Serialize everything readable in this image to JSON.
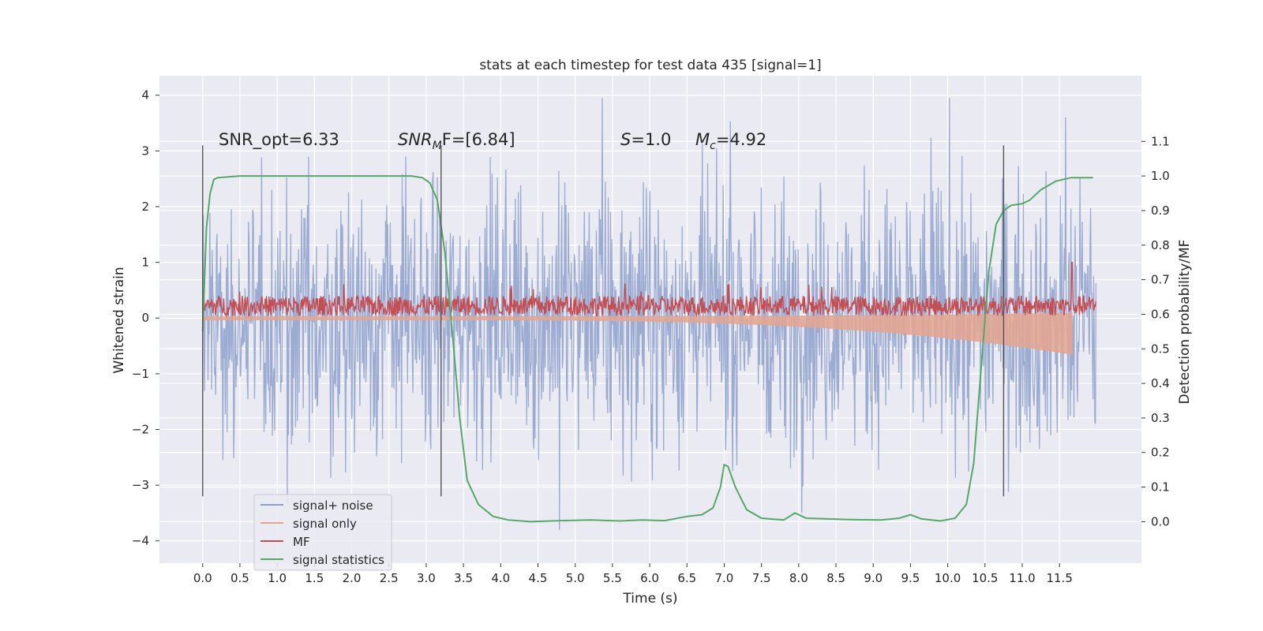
{
  "chart_data": {
    "type": "line",
    "title": "stats at each timestep for test data 435 [signal=1]",
    "xlabel": "Time (s)",
    "ylabel": "Whitened strain",
    "ylabel_right": "Detection probability/MF",
    "xlim": [
      -0.58,
      12.6
    ],
    "ylim": [
      -4.4,
      4.35
    ],
    "ylim_right": [
      -0.12,
      1.29
    ],
    "x_ticks": [
      0.0,
      0.5,
      1.0,
      1.5,
      2.0,
      2.5,
      3.0,
      3.5,
      4.0,
      4.5,
      5.0,
      5.5,
      6.0,
      6.5,
      7.0,
      7.5,
      8.0,
      8.5,
      9.0,
      9.5,
      10.0,
      10.5,
      11.0,
      11.5
    ],
    "x_tick_labels": [
      "0.0",
      "0.5",
      "1.0",
      "1.5",
      "2.0",
      "2.5",
      "3.0",
      "3.5",
      "4.0",
      "4.5",
      "5.0",
      "5.5",
      "6.0",
      "6.5",
      "7.0",
      "7.5",
      "8.0",
      "8.5",
      "9.0",
      "9.5",
      "10.0",
      "10.5",
      "11.0",
      "11.5"
    ],
    "y_ticks": [
      -4,
      -3,
      -2,
      -1,
      0,
      1,
      2,
      3,
      4
    ],
    "y_tick_labels": [
      "−4",
      "−3",
      "−2",
      "−1",
      "0",
      "1",
      "2",
      "3",
      "4"
    ],
    "y_ticks_right": [
      0.0,
      0.1,
      0.2,
      0.3,
      0.4,
      0.5,
      0.6,
      0.7,
      0.8,
      0.9,
      1.0,
      1.1
    ],
    "y_tick_labels_right": [
      "0.0",
      "0.1",
      "0.2",
      "0.3",
      "0.4",
      "0.5",
      "0.6",
      "0.7",
      "0.8",
      "0.9",
      "1.0",
      "1.1"
    ],
    "grid": true,
    "legend_position": "lower-left",
    "annotations": {
      "snr_opt": "SNR_opt=6.33",
      "snr_mf_base": "SNR",
      "snr_mf_sub": "M",
      "snr_mf_tail": "F=[6.84]",
      "s_label": "S",
      "s_value": "=1.0",
      "mc_base": "M",
      "mc_sub": "c",
      "mc_value": "=4.92"
    },
    "vertical_markers": [
      0.0,
      3.2,
      10.75
    ],
    "marker_range": [
      -3.2,
      3.1
    ],
    "series": [
      {
        "name": "signal+ noise",
        "color": "#8da0cb",
        "axis": "left",
        "style": "noise",
        "x_range": [
          0.0,
          11.99
        ],
        "peak_min": -3.8,
        "peak_max": 3.95
      },
      {
        "name": "signal only",
        "color": "#e4a58f",
        "axis": "left",
        "style": "chirp",
        "x_range": [
          0.0,
          11.67
        ],
        "min": -0.62
      },
      {
        "name": "MF",
        "color": "#c44e52",
        "axis": "left",
        "style": "mf",
        "x_range": [
          0.0,
          11.99
        ],
        "center": 0.22,
        "max": 1.0,
        "spike_x": 11.67
      },
      {
        "name": "signal statistics",
        "color": "#55a868",
        "axis": "right",
        "style": "curve",
        "points": [
          [
            0.0,
            0.55
          ],
          [
            0.05,
            0.85
          ],
          [
            0.1,
            0.95
          ],
          [
            0.15,
            0.99
          ],
          [
            0.2,
            0.995
          ],
          [
            0.5,
            1.0
          ],
          [
            1.0,
            1.0
          ],
          [
            1.5,
            1.0
          ],
          [
            2.0,
            1.0
          ],
          [
            2.5,
            1.0
          ],
          [
            2.8,
            1.0
          ],
          [
            2.95,
            0.995
          ],
          [
            3.05,
            0.98
          ],
          [
            3.15,
            0.93
          ],
          [
            3.25,
            0.78
          ],
          [
            3.35,
            0.55
          ],
          [
            3.45,
            0.3
          ],
          [
            3.55,
            0.12
          ],
          [
            3.7,
            0.05
          ],
          [
            3.9,
            0.015
          ],
          [
            4.1,
            0.005
          ],
          [
            4.4,
            0.0
          ],
          [
            4.8,
            0.003
          ],
          [
            5.2,
            0.005
          ],
          [
            5.6,
            0.002
          ],
          [
            5.9,
            0.005
          ],
          [
            6.2,
            0.003
          ],
          [
            6.5,
            0.015
          ],
          [
            6.7,
            0.02
          ],
          [
            6.85,
            0.04
          ],
          [
            6.95,
            0.1
          ],
          [
            7.0,
            0.165
          ],
          [
            7.05,
            0.16
          ],
          [
            7.15,
            0.1
          ],
          [
            7.3,
            0.035
          ],
          [
            7.5,
            0.01
          ],
          [
            7.8,
            0.005
          ],
          [
            7.95,
            0.025
          ],
          [
            8.1,
            0.01
          ],
          [
            8.4,
            0.008
          ],
          [
            8.7,
            0.006
          ],
          [
            9.1,
            0.005
          ],
          [
            9.35,
            0.01
          ],
          [
            9.5,
            0.02
          ],
          [
            9.65,
            0.008
          ],
          [
            9.9,
            0.002
          ],
          [
            10.1,
            0.01
          ],
          [
            10.25,
            0.05
          ],
          [
            10.35,
            0.17
          ],
          [
            10.45,
            0.45
          ],
          [
            10.55,
            0.72
          ],
          [
            10.65,
            0.86
          ],
          [
            10.75,
            0.9
          ],
          [
            10.85,
            0.915
          ],
          [
            11.0,
            0.92
          ],
          [
            11.1,
            0.93
          ],
          [
            11.25,
            0.96
          ],
          [
            11.45,
            0.985
          ],
          [
            11.65,
            0.995
          ],
          [
            11.95,
            0.995
          ]
        ]
      }
    ]
  }
}
